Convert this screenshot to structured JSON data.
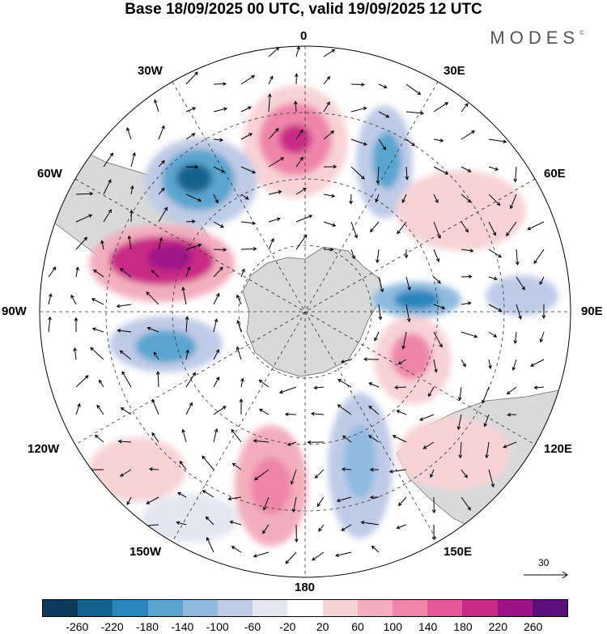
{
  "title": "Base 18/09/2025 00 UTC, valid 19/09/2025 12 UTC",
  "brand": "MODES",
  "brand_mark": "©",
  "longitude_labels": {
    "lon_0": "0",
    "lon_30e": "30E",
    "lon_60e": "60E",
    "lon_90e": "90E",
    "lon_120e": "120E",
    "lon_150e": "150E",
    "lon_180": "180",
    "lon_150w": "150W",
    "lon_120w": "120W",
    "lon_90w": "90W",
    "lon_60w": "60W",
    "lon_30w": "30W"
  },
  "reference_vector": {
    "value": "30"
  },
  "colorbar": {
    "colors": [
      "#0b3a5a",
      "#14628e",
      "#2a86bb",
      "#5aa5cf",
      "#8fbbdf",
      "#bfcbe6",
      "#e6e6f2",
      "#ffffff",
      "#f8d3d6",
      "#f3aebd",
      "#ee85a9",
      "#e45897",
      "#c92a86",
      "#9e1287",
      "#5c0f7a"
    ],
    "ticks": [
      "-260",
      "-220",
      "-180",
      "-140",
      "-100",
      "-60",
      "-20",
      "20",
      "60",
      "100",
      "140",
      "180",
      "220",
      "260"
    ]
  }
}
